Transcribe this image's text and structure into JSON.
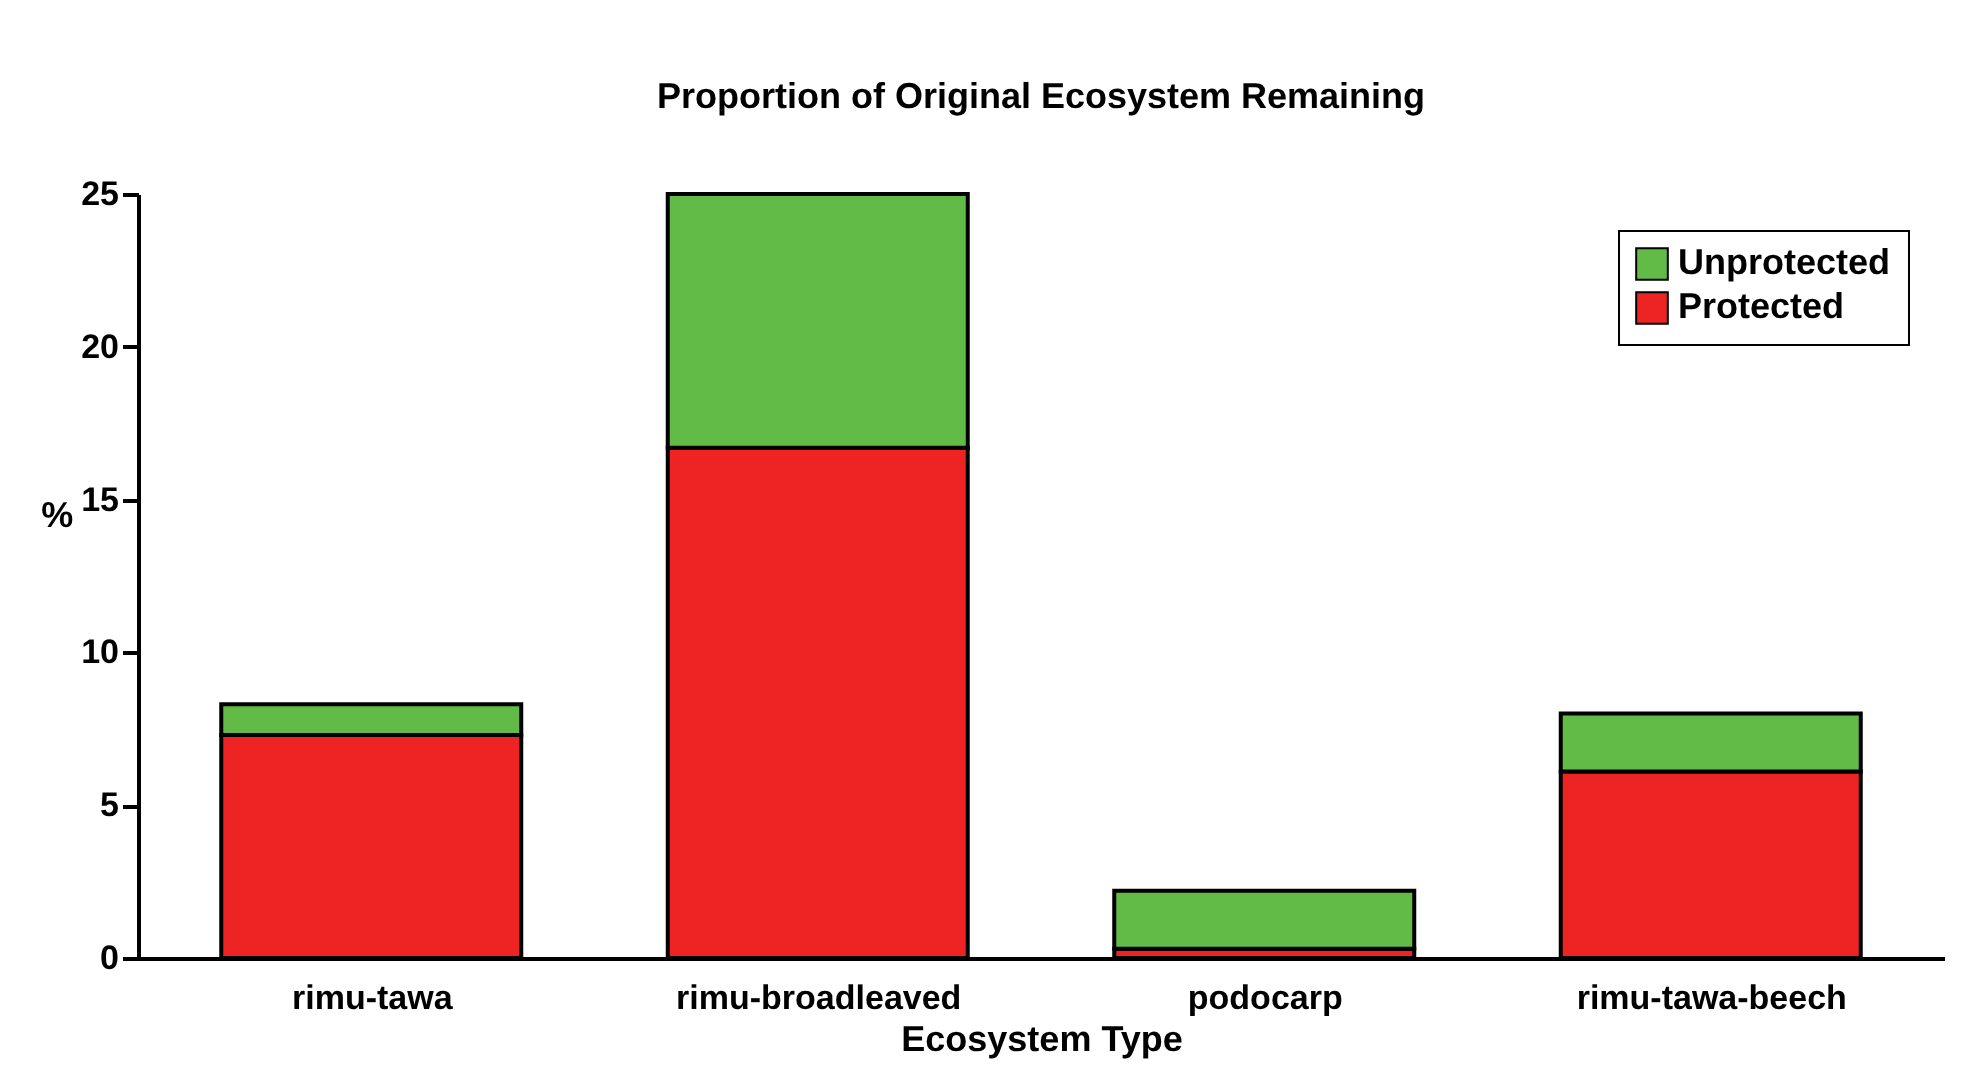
{
  "chart_data": {
    "type": "bar",
    "title": "Proportion of Original Ecosystem Remaining",
    "xlabel": "Ecosystem Type",
    "ylabel": "%",
    "categories": [
      "rimu-tawa",
      "rimu-broadleaved",
      "podocarp",
      "rimu-tawa-beech"
    ],
    "stacked": true,
    "series": [
      {
        "name": "Protected",
        "color": "#ee2424",
        "values": [
          7.3,
          16.7,
          0.3,
          6.1
        ]
      },
      {
        "name": "Unprotected",
        "color": "#62bb46",
        "values": [
          1.0,
          8.3,
          1.9,
          1.9
        ]
      }
    ],
    "ylim": [
      0,
      25
    ],
    "yticks": [
      0,
      5,
      10,
      15,
      20,
      25
    ],
    "grid": false,
    "legend": "top right"
  }
}
